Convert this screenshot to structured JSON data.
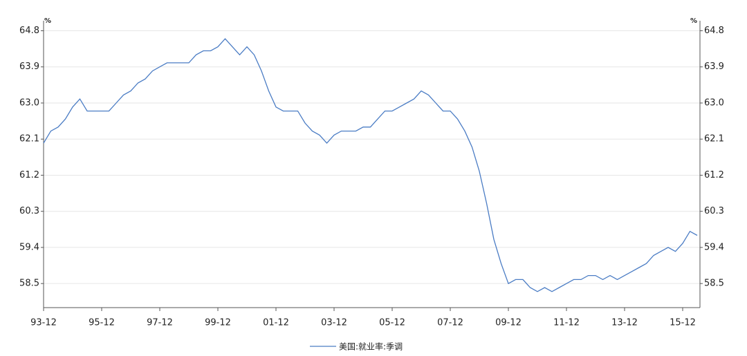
{
  "chart_data": {
    "type": "line",
    "unit_left": "%",
    "unit_right": "%",
    "categories": [
      "93-12",
      null,
      null,
      null,
      null,
      null,
      null,
      null,
      "95-12",
      null,
      null,
      null,
      null,
      null,
      null,
      null,
      "97-12",
      null,
      null,
      null,
      null,
      null,
      null,
      null,
      "99-12",
      null,
      null,
      null,
      null,
      null,
      null,
      null,
      "01-12",
      null,
      null,
      null,
      null,
      null,
      null,
      null,
      "03-12",
      null,
      null,
      null,
      null,
      null,
      null,
      null,
      "05-12",
      null,
      null,
      null,
      null,
      null,
      null,
      null,
      "07-12",
      null,
      null,
      null,
      null,
      null,
      null,
      null,
      "09-12",
      null,
      null,
      null,
      null,
      null,
      null,
      null,
      "11-12",
      null,
      null,
      null,
      null,
      null,
      null,
      null,
      "13-12",
      null,
      null,
      null,
      null,
      null,
      null,
      null,
      "15-12",
      null,
      null
    ],
    "series": [
      {
        "name": "美国:就业率:季调",
        "color": "#4a7cc4",
        "values": [
          62.0,
          62.3,
          62.4,
          62.6,
          62.9,
          63.1,
          62.8,
          62.8,
          62.8,
          62.8,
          63.0,
          63.2,
          63.3,
          63.5,
          63.6,
          63.8,
          63.9,
          64.0,
          64.0,
          64.0,
          64.0,
          64.2,
          64.3,
          64.3,
          64.4,
          64.6,
          64.4,
          64.2,
          64.4,
          64.2,
          63.8,
          63.3,
          62.9,
          62.8,
          62.8,
          62.8,
          62.5,
          62.3,
          62.2,
          62.0,
          62.2,
          62.3,
          62.3,
          62.3,
          62.4,
          62.4,
          62.6,
          62.8,
          62.8,
          62.9,
          63.0,
          63.1,
          63.3,
          63.2,
          63.0,
          62.8,
          62.8,
          62.6,
          62.3,
          61.9,
          61.3,
          60.5,
          59.6,
          59.0,
          58.5,
          58.6,
          58.6,
          58.4,
          58.3,
          58.4,
          58.3,
          58.4,
          58.5,
          58.6,
          58.6,
          58.7,
          58.7,
          58.6,
          58.7,
          58.6,
          58.7,
          58.8,
          58.9,
          59.0,
          59.2,
          59.3,
          59.4,
          59.3,
          59.5,
          59.8,
          59.7
        ]
      }
    ],
    "ylim": [
      57.9,
      65.05
    ],
    "yticks": [
      58.5,
      59.4,
      60.3,
      61.2,
      62.1,
      {
        "value": 63,
        "label": "63.0"
      },
      63.9,
      64.8
    ],
    "grid": true,
    "legend": "bottom"
  }
}
